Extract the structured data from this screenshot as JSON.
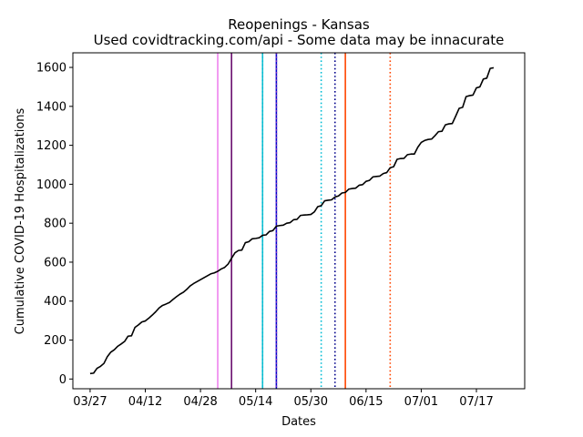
{
  "chart_data": {
    "type": "line",
    "title": "Reopenings - Kansas",
    "subtitle": "Used covidtracking.com/api - Some data may be innacurate",
    "xlabel": "Dates",
    "ylabel": "Cumulative COVID-19 Hospitalizations",
    "xlim": [
      "2020-03-22",
      "2020-07-31"
    ],
    "ylim": [
      -50,
      1675
    ],
    "x_ticks": [
      "2020-03-27",
      "2020-04-12",
      "2020-04-28",
      "2020-05-14",
      "2020-05-30",
      "2020-06-15",
      "2020-07-01",
      "2020-07-17"
    ],
    "x_tick_labels": [
      "03/27",
      "04/12",
      "04/28",
      "05/14",
      "05/30",
      "06/15",
      "07/01",
      "07/17"
    ],
    "y_ticks": [
      0,
      200,
      400,
      600,
      800,
      1000,
      1200,
      1400,
      1600
    ],
    "y_tick_labels": [
      "0",
      "200",
      "400",
      "600",
      "800",
      "1000",
      "1200",
      "1400",
      "1600"
    ],
    "grid": false,
    "series": [
      {
        "color": "#000000",
        "points": [
          [
            "2020-03-27",
            28
          ],
          [
            "2020-03-28",
            30
          ],
          [
            "2020-03-29",
            55
          ],
          [
            "2020-03-30",
            65
          ],
          [
            "2020-03-31",
            80
          ],
          [
            "2020-04-01",
            115
          ],
          [
            "2020-04-02",
            138
          ],
          [
            "2020-04-03",
            150
          ],
          [
            "2020-04-04",
            168
          ],
          [
            "2020-04-05",
            180
          ],
          [
            "2020-04-06",
            193
          ],
          [
            "2020-04-07",
            220
          ],
          [
            "2020-04-08",
            222
          ],
          [
            "2020-04-09",
            265
          ],
          [
            "2020-04-10",
            278
          ],
          [
            "2020-04-11",
            293
          ],
          [
            "2020-04-12",
            298
          ],
          [
            "2020-04-13",
            312
          ],
          [
            "2020-04-14",
            328
          ],
          [
            "2020-04-15",
            345
          ],
          [
            "2020-04-16",
            365
          ],
          [
            "2020-04-17",
            378
          ],
          [
            "2020-04-18",
            385
          ],
          [
            "2020-04-19",
            393
          ],
          [
            "2020-04-20",
            408
          ],
          [
            "2020-04-21",
            422
          ],
          [
            "2020-04-22",
            435
          ],
          [
            "2020-04-23",
            445
          ],
          [
            "2020-04-24",
            460
          ],
          [
            "2020-04-25",
            478
          ],
          [
            "2020-04-26",
            490
          ],
          [
            "2020-04-27",
            500
          ],
          [
            "2020-04-28",
            510
          ],
          [
            "2020-04-29",
            520
          ],
          [
            "2020-04-30",
            530
          ],
          [
            "2020-05-01",
            540
          ],
          [
            "2020-05-02",
            545
          ],
          [
            "2020-05-03",
            553
          ],
          [
            "2020-05-04",
            565
          ],
          [
            "2020-05-05",
            573
          ],
          [
            "2020-05-06",
            590
          ],
          [
            "2020-05-07",
            620
          ],
          [
            "2020-05-08",
            648
          ],
          [
            "2020-05-09",
            660
          ],
          [
            "2020-05-10",
            662
          ],
          [
            "2020-05-11",
            700
          ],
          [
            "2020-05-12",
            705
          ],
          [
            "2020-05-13",
            720
          ],
          [
            "2020-05-14",
            722
          ],
          [
            "2020-05-15",
            725
          ],
          [
            "2020-05-16",
            738
          ],
          [
            "2020-05-17",
            740
          ],
          [
            "2020-05-18",
            758
          ],
          [
            "2020-05-19",
            762
          ],
          [
            "2020-05-20",
            785
          ],
          [
            "2020-05-21",
            788
          ],
          [
            "2020-05-22",
            790
          ],
          [
            "2020-05-23",
            800
          ],
          [
            "2020-05-24",
            803
          ],
          [
            "2020-05-25",
            818
          ],
          [
            "2020-05-26",
            820
          ],
          [
            "2020-05-27",
            840
          ],
          [
            "2020-05-28",
            842
          ],
          [
            "2020-05-29",
            843
          ],
          [
            "2020-05-30",
            845
          ],
          [
            "2020-05-31",
            858
          ],
          [
            "2020-06-01",
            885
          ],
          [
            "2020-06-02",
            890
          ],
          [
            "2020-06-03",
            915
          ],
          [
            "2020-06-04",
            918
          ],
          [
            "2020-06-05",
            920
          ],
          [
            "2020-06-06",
            935
          ],
          [
            "2020-06-07",
            940
          ],
          [
            "2020-06-08",
            955
          ],
          [
            "2020-06-09",
            958
          ],
          [
            "2020-06-10",
            975
          ],
          [
            "2020-06-11",
            978
          ],
          [
            "2020-06-12",
            980
          ],
          [
            "2020-06-13",
            995
          ],
          [
            "2020-06-14",
            998
          ],
          [
            "2020-06-15",
            1015
          ],
          [
            "2020-06-16",
            1020
          ],
          [
            "2020-06-17",
            1038
          ],
          [
            "2020-06-18",
            1040
          ],
          [
            "2020-06-19",
            1042
          ],
          [
            "2020-06-20",
            1055
          ],
          [
            "2020-06-21",
            1060
          ],
          [
            "2020-06-22",
            1085
          ],
          [
            "2020-06-23",
            1090
          ],
          [
            "2020-06-24",
            1128
          ],
          [
            "2020-06-25",
            1132
          ],
          [
            "2020-06-26",
            1133
          ],
          [
            "2020-06-27",
            1152
          ],
          [
            "2020-06-28",
            1155
          ],
          [
            "2020-06-29",
            1155
          ],
          [
            "2020-06-30",
            1190
          ],
          [
            "2020-07-01",
            1215
          ],
          [
            "2020-07-02",
            1225
          ],
          [
            "2020-07-03",
            1230
          ],
          [
            "2020-07-04",
            1232
          ],
          [
            "2020-07-05",
            1250
          ],
          [
            "2020-07-06",
            1270
          ],
          [
            "2020-07-07",
            1272
          ],
          [
            "2020-07-08",
            1305
          ],
          [
            "2020-07-09",
            1310
          ],
          [
            "2020-07-10",
            1312
          ],
          [
            "2020-07-11",
            1350
          ],
          [
            "2020-07-12",
            1390
          ],
          [
            "2020-07-13",
            1395
          ],
          [
            "2020-07-14",
            1450
          ],
          [
            "2020-07-15",
            1455
          ],
          [
            "2020-07-16",
            1458
          ],
          [
            "2020-07-17",
            1495
          ],
          [
            "2020-07-18",
            1500
          ],
          [
            "2020-07-19",
            1540
          ],
          [
            "2020-07-20",
            1545
          ],
          [
            "2020-07-21",
            1595
          ],
          [
            "2020-07-22",
            1598
          ]
        ]
      }
    ],
    "vertical_lines": [
      {
        "x": "2020-05-03",
        "color": "#ee82ee",
        "style": "solid"
      },
      {
        "x": "2020-05-07",
        "color": "#6a0d6e",
        "style": "solid"
      },
      {
        "x": "2020-05-16",
        "color": "#17becf",
        "style": "solid"
      },
      {
        "x": "2020-05-16",
        "color": "#00bcd4",
        "style": "dotted"
      },
      {
        "x": "2020-05-20",
        "color": "#0000cd",
        "style": "solid"
      },
      {
        "x": "2020-05-20",
        "color": "#7b2fbe",
        "style": "dotted"
      },
      {
        "x": "2020-06-02",
        "color": "#00bcd4",
        "style": "dotted"
      },
      {
        "x": "2020-06-06",
        "color": "#00008b",
        "style": "dotted"
      },
      {
        "x": "2020-06-09",
        "color": "#ff4500",
        "style": "solid"
      },
      {
        "x": "2020-06-22",
        "color": "#ff4500",
        "style": "dotted"
      }
    ]
  }
}
